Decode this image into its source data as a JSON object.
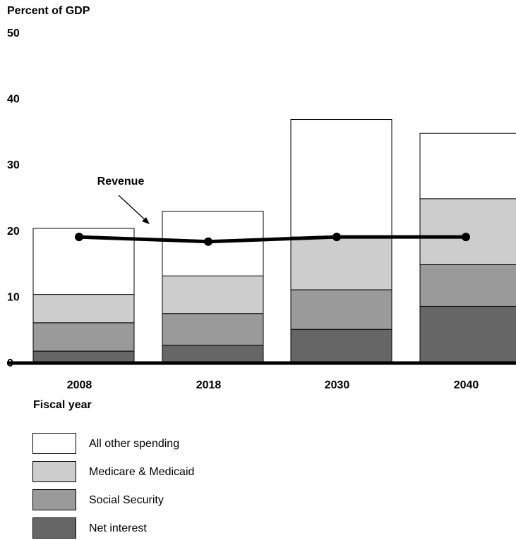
{
  "chart_data": {
    "type": "stacked-bar-with-line",
    "ylabel": "Percent of GDP",
    "xlabel": "Fiscal year",
    "ylim": [
      0,
      50
    ],
    "yticks": [
      0,
      10,
      20,
      30,
      40,
      50
    ],
    "categories": [
      "2008",
      "2018",
      "2030",
      "2040"
    ],
    "series": [
      {
        "name": "Net interest",
        "color": "#666666",
        "values": [
          1.7,
          2.6,
          5.0,
          8.5
        ]
      },
      {
        "name": "Social Security",
        "color": "#9a9a9a",
        "values": [
          4.3,
          4.8,
          6.0,
          6.3
        ]
      },
      {
        "name": "Medicare & Medicaid",
        "color": "#cdcdcd",
        "values": [
          4.3,
          5.7,
          8.0,
          10.0
        ]
      },
      {
        "name": "All other spending",
        "color": "#ffffff",
        "values": [
          10.0,
          9.8,
          17.8,
          9.9
        ]
      }
    ],
    "line": {
      "name": "Revenue",
      "values": [
        19.0,
        18.3,
        19.0,
        19.0
      ],
      "color": "#000000"
    },
    "annotation": {
      "text": "Revenue"
    },
    "legend_order": [
      "All other spending",
      "Medicare & Medicaid",
      "Social Security",
      "Net interest"
    ],
    "legend_position": "bottom-left"
  }
}
